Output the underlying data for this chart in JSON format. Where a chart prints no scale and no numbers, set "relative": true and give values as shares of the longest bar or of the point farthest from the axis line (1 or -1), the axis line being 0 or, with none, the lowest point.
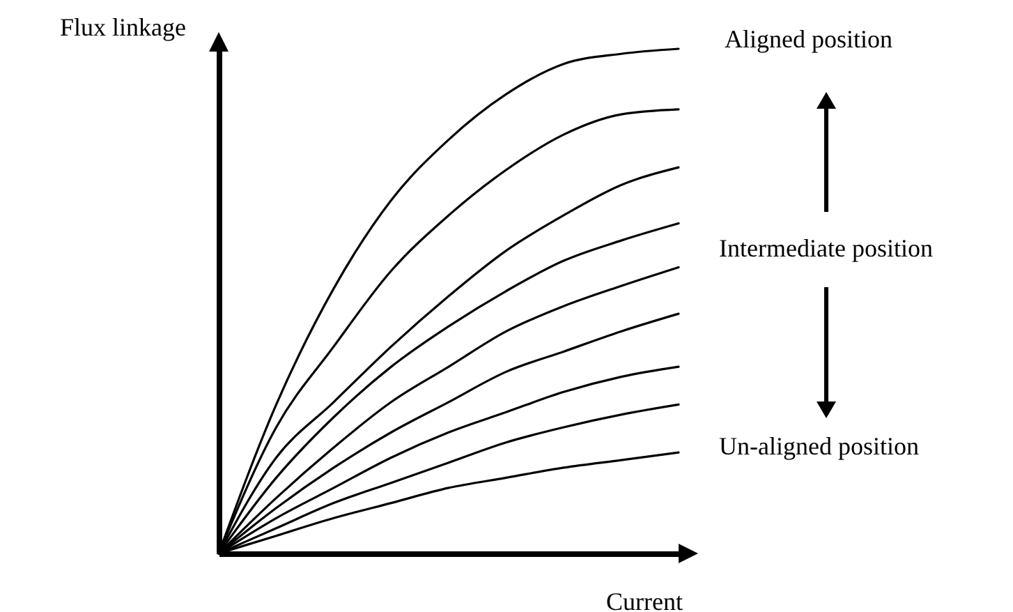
{
  "chart_data": {
    "type": "line",
    "relative": true,
    "xlabel": "Current",
    "ylabel": "Flux linkage",
    "marker": "none",
    "categories": [
      null,
      null,
      null,
      null,
      null,
      null,
      null,
      null,
      null
    ],
    "series": [
      {
        "color": "#000000",
        "values": [
          0,
          0.295,
          0.525,
          0.7,
          0.82,
          0.91,
          0.97,
          0.99,
          1
        ]
      },
      {
        "color": "#000000",
        "values": [
          0,
          0.25,
          0.41,
          0.56,
          0.67,
          0.76,
          0.83,
          0.87,
          0.88
        ]
      },
      {
        "color": "#000000",
        "values": [
          0,
          0.19,
          0.3,
          0.41,
          0.51,
          0.6,
          0.67,
          0.73,
          0.765
        ]
      },
      {
        "color": "#000000",
        "values": [
          0,
          0.15,
          0.27,
          0.37,
          0.45,
          0.52,
          0.58,
          0.62,
          0.654
        ]
      },
      {
        "color": "#000000",
        "values": [
          0,
          0.11,
          0.21,
          0.3,
          0.37,
          0.44,
          0.49,
          0.53,
          0.567
        ]
      },
      {
        "color": "#000000",
        "values": [
          0,
          0.09,
          0.17,
          0.24,
          0.3,
          0.36,
          0.4,
          0.44,
          0.475
        ]
      },
      {
        "color": "#000000",
        "values": [
          0,
          0.07,
          0.13,
          0.19,
          0.24,
          0.28,
          0.32,
          0.35,
          0.37
        ]
      },
      {
        "color": "#000000",
        "values": [
          0,
          0.05,
          0.1,
          0.14,
          0.18,
          0.22,
          0.25,
          0.275,
          0.295
        ]
      },
      {
        "color": "#000000",
        "values": [
          0,
          0.035,
          0.07,
          0.1,
          0.13,
          0.15,
          0.17,
          0.185,
          0.2
        ]
      }
    ],
    "annotations": [
      "Aligned position",
      "Intermediate position",
      "Un-aligned position"
    ]
  }
}
